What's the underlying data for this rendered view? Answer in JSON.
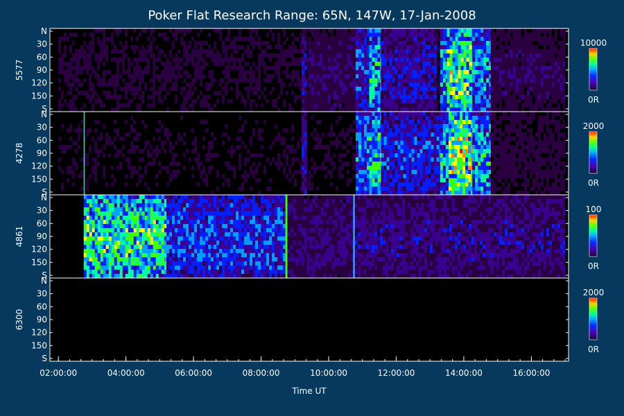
{
  "chart_data": {
    "type": "heatmap",
    "title": "Poker Flat Research Range: 65N, 147W, 17-Jan-2008",
    "xlabel": "Time UT",
    "x_ticks": [
      "02:00:00",
      "04:00:00",
      "06:00:00",
      "08:00:00",
      "10:00:00",
      "12:00:00",
      "14:00:00",
      "16:00:00"
    ],
    "x_tick_hours": [
      2,
      4,
      6,
      8,
      10,
      12,
      14,
      16
    ],
    "xlim_hours": [
      1.75,
      17.1
    ],
    "y_ticks": [
      "N",
      "30",
      "60",
      "90",
      "120",
      "150",
      "S"
    ],
    "colormap": [
      "#000000",
      "#2a0040",
      "#3a0090",
      "#0020ff",
      "#00a0ff",
      "#00ffa0",
      "#40ff00",
      "#ffff00",
      "#ff8000",
      "#ff0000"
    ],
    "panels": [
      {
        "label": "5577",
        "scale_max": "10000",
        "scale_min": "0R",
        "features": [
          {
            "kind": "band",
            "start": 2.0,
            "end": 17.0,
            "level": 0.12
          },
          {
            "kind": "band",
            "start": 9.2,
            "end": 9.35,
            "level": 0.28
          },
          {
            "kind": "band",
            "start": 9.4,
            "end": 10.8,
            "level": 0.2
          },
          {
            "kind": "band",
            "start": 10.8,
            "end": 11.2,
            "level": 0.35
          },
          {
            "kind": "band",
            "start": 11.2,
            "end": 11.55,
            "level": 0.5
          },
          {
            "kind": "band",
            "start": 11.55,
            "end": 13.2,
            "level": 0.3
          },
          {
            "kind": "band",
            "start": 13.3,
            "end": 13.5,
            "level": 0.45
          },
          {
            "kind": "band",
            "start": 13.5,
            "end": 14.25,
            "level": 0.62
          },
          {
            "kind": "band",
            "start": 14.25,
            "end": 14.8,
            "level": 0.45
          },
          {
            "kind": "band",
            "start": 14.8,
            "end": 17.0,
            "level": 0.18
          }
        ]
      },
      {
        "label": "4278",
        "scale_max": "2000",
        "scale_min": "0R",
        "features": [
          {
            "kind": "band",
            "start": 2.0,
            "end": 17.0,
            "level": 0.1
          },
          {
            "kind": "line",
            "start": 2.75,
            "end": 2.78,
            "level": 0.55
          },
          {
            "kind": "band",
            "start": 9.2,
            "end": 9.35,
            "level": 0.3
          },
          {
            "kind": "band",
            "start": 10.8,
            "end": 11.2,
            "level": 0.42
          },
          {
            "kind": "band",
            "start": 11.2,
            "end": 11.55,
            "level": 0.55
          },
          {
            "kind": "band",
            "start": 11.55,
            "end": 13.3,
            "level": 0.35
          },
          {
            "kind": "band",
            "start": 13.3,
            "end": 13.55,
            "level": 0.5
          },
          {
            "kind": "band",
            "start": 13.55,
            "end": 14.25,
            "level": 0.7
          },
          {
            "kind": "band",
            "start": 14.25,
            "end": 14.8,
            "level": 0.48
          },
          {
            "kind": "band",
            "start": 14.8,
            "end": 17.0,
            "level": 0.15
          }
        ]
      },
      {
        "label": "4861",
        "scale_max": "100",
        "scale_min": "0R",
        "features": [
          {
            "kind": "band",
            "start": 2.75,
            "end": 5.2,
            "level": 0.6
          },
          {
            "kind": "band",
            "start": 5.2,
            "end": 8.75,
            "level": 0.38
          },
          {
            "kind": "line",
            "start": 8.72,
            "end": 8.78,
            "level": 0.65
          },
          {
            "kind": "band",
            "start": 8.78,
            "end": 10.75,
            "level": 0.22
          },
          {
            "kind": "line",
            "start": 10.72,
            "end": 10.78,
            "level": 0.4
          },
          {
            "kind": "band",
            "start": 10.78,
            "end": 17.0,
            "level": 0.25
          }
        ]
      },
      {
        "label": "6300",
        "scale_max": "2000",
        "scale_min": "0R",
        "features": [
          {
            "kind": "band",
            "start": 2.0,
            "end": 17.0,
            "level": 0.05
          }
        ]
      }
    ]
  }
}
